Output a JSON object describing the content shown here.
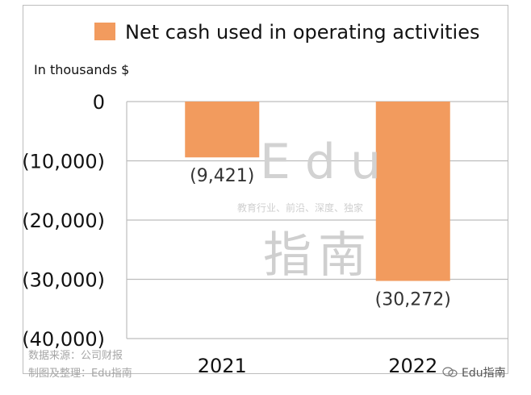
{
  "chart_data": {
    "type": "bar",
    "legend": "Net cash used in operating activities",
    "unit_label": "In thousands $",
    "categories": [
      "2021",
      "2022"
    ],
    "values": [
      -9421,
      -30272
    ],
    "data_labels": [
      "(9,421)",
      "(30,272)"
    ],
    "ylim": [
      -40000,
      0
    ],
    "yticks": [
      0,
      -10000,
      -20000,
      -30000,
      -40000
    ],
    "ytick_labels": [
      "0",
      "(10,000)",
      "(20,000)",
      "(30,000)",
      "(40,000)"
    ],
    "grid": true,
    "bar_color": "#F29B5E",
    "legend_placement": "top"
  },
  "watermark": {
    "edu": "Edu",
    "tagline": "教育行业、前沿、深度、独家",
    "zhinan": "指南"
  },
  "footer": {
    "source": "数据来源：公司财报",
    "maker": "制图及整理：Edu指南",
    "wechat_name": "Edu指南"
  },
  "colors": {
    "bar": "#F29B5E",
    "grid": "#bdbdbd",
    "text": "#111111"
  }
}
